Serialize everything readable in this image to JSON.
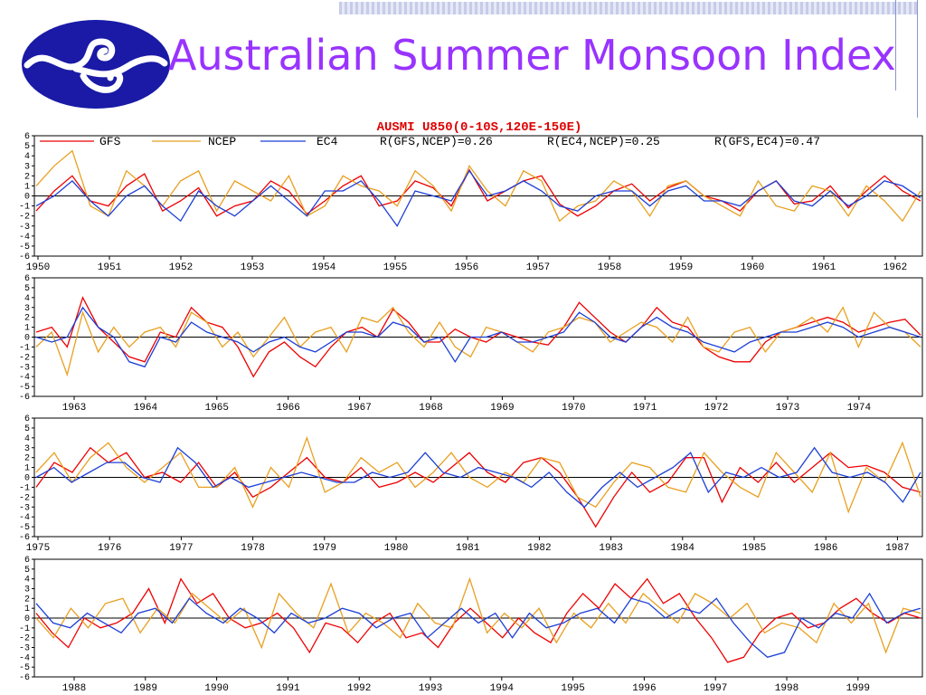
{
  "slide": {
    "title": "Australian Summer Monsoon Index"
  },
  "colors": {
    "title": "#9933ff",
    "logo_bg": "#1a1aa6",
    "gfs": "#ee0000",
    "ncep": "#e8a020",
    "ec4": "#1c3fd6"
  },
  "chart_data": {
    "type": "line",
    "title": "AUSMI U850(0-10S,120E-150E)",
    "legend_placement": "top",
    "correlation_labels": [
      "R(GFS,NCEP)=0.26",
      "R(EC4,NCEP)=0.25",
      "R(GFS,EC4)=0.47"
    ],
    "ylim": [
      -6,
      6
    ],
    "ytick_labels": [
      "6",
      "5",
      "4",
      "3",
      "2",
      "1",
      "0",
      "-1",
      "-2",
      "-3",
      "-4",
      "-5",
      "-6"
    ],
    "series_names": [
      "GFS",
      "NCEP",
      "EC4"
    ],
    "panels": [
      {
        "years": [
          "1950",
          "1951",
          "1952",
          "1953",
          "1954",
          "1955",
          "1956",
          "1957",
          "1958",
          "1959",
          "1960",
          "1961",
          "1962"
        ],
        "series": [
          {
            "name": "GFS",
            "values": [
              -1.5,
              0.5,
              2.0,
              -0.5,
              -1.0,
              1.0,
              2.2,
              -1.5,
              -0.5,
              0.8,
              -2.0,
              -1.0,
              -0.5,
              1.5,
              0.5,
              -1.8,
              -0.5,
              1.0,
              2.0,
              -1.0,
              -0.5,
              1.5,
              0.8,
              -1.0,
              2.6,
              -0.5,
              0.5,
              1.5,
              2.0,
              -0.8,
              -2.0,
              -1.0,
              0.5,
              1.2,
              -0.5,
              0.8,
              1.5,
              0.0,
              -0.5,
              -1.5,
              0.5,
              1.5,
              -0.8,
              -0.5,
              1.0,
              -1.2,
              0.5,
              2.0,
              0.5,
              -0.5
            ]
          },
          {
            "name": "NCEP",
            "values": [
              1.0,
              3.0,
              4.5,
              -1.0,
              -2.0,
              2.5,
              1.0,
              -1.0,
              1.5,
              2.5,
              -1.5,
              1.5,
              0.5,
              -0.5,
              2.0,
              -2.0,
              -1.0,
              2.0,
              1.0,
              0.5,
              -1.0,
              2.5,
              1.0,
              -1.5,
              3.0,
              0.5,
              -1.0,
              2.5,
              1.5,
              -2.5,
              -1.0,
              -0.5,
              1.5,
              0.5,
              -2.0,
              1.0,
              1.5,
              0.0,
              -1.0,
              -2.0,
              1.5,
              -1.0,
              -1.5,
              1.0,
              0.5,
              -2.0,
              1.0,
              -0.5,
              -2.5,
              0.5
            ]
          },
          {
            "name": "EC4",
            "values": [
              -1.0,
              0.0,
              1.5,
              -0.5,
              -2.0,
              0.0,
              1.0,
              -1.0,
              -2.5,
              0.5,
              -1.0,
              -2.0,
              -0.5,
              1.0,
              -0.5,
              -2.0,
              0.5,
              0.5,
              1.5,
              -0.5,
              -3.0,
              0.5,
              0.0,
              -0.5,
              2.5,
              0.0,
              0.5,
              1.5,
              0.5,
              -1.0,
              -1.5,
              0.0,
              0.5,
              0.5,
              -1.0,
              0.5,
              1.0,
              -0.5,
              -0.5,
              -1.0,
              0.5,
              1.5,
              -0.5,
              -1.0,
              0.5,
              -1.0,
              0.0,
              1.5,
              1.0,
              -0.2
            ]
          }
        ]
      },
      {
        "years": [
          "1963",
          "1964",
          "1965",
          "1966",
          "1967",
          "1968",
          "1969",
          "1970",
          "1971",
          "1972",
          "1973",
          "1974"
        ],
        "series": [
          {
            "name": "GFS",
            "values": [
              0.5,
              1.0,
              -1.0,
              4.0,
              1.0,
              -0.5,
              -2.0,
              -2.5,
              0.5,
              0.0,
              3.0,
              1.5,
              1.0,
              -1.0,
              -4.0,
              -1.5,
              -0.5,
              -2.0,
              -3.0,
              -1.0,
              0.5,
              1.0,
              0.0,
              2.8,
              1.5,
              -0.5,
              -0.5,
              0.8,
              0.0,
              -0.5,
              0.5,
              0.0,
              -0.5,
              -0.8,
              1.0,
              3.5,
              2.0,
              0.5,
              -0.5,
              1.0,
              3.0,
              1.5,
              1.0,
              -1.0,
              -2.0,
              -2.5,
              -2.5,
              -0.5,
              0.5,
              1.0,
              1.5,
              2.0,
              1.5,
              0.5,
              1.0,
              1.5,
              1.8,
              0.2
            ]
          },
          {
            "name": "NCEP",
            "values": [
              -1.0,
              0.5,
              -3.8,
              2.5,
              -1.5,
              1.0,
              -1.0,
              0.5,
              1.0,
              -1.0,
              2.5,
              1.5,
              -1.0,
              0.5,
              -2.0,
              0.0,
              2.0,
              -1.0,
              0.5,
              1.0,
              -1.5,
              2.0,
              1.5,
              3.0,
              0.5,
              -1.0,
              1.5,
              -1.0,
              -2.0,
              1.0,
              0.5,
              -0.5,
              -1.5,
              0.5,
              1.0,
              2.0,
              1.5,
              -0.5,
              0.5,
              1.5,
              1.0,
              -0.5,
              2.0,
              -1.0,
              -1.5,
              0.5,
              1.0,
              -1.5,
              0.5,
              1.0,
              2.0,
              0.5,
              3.0,
              -1.0,
              2.5,
              1.0,
              0.5,
              -1.0
            ]
          },
          {
            "name": "EC4",
            "values": [
              0.0,
              -0.5,
              0.0,
              3.0,
              1.0,
              0.0,
              -2.5,
              -3.0,
              0.0,
              -0.5,
              1.5,
              0.5,
              0.0,
              -0.5,
              -1.5,
              -0.5,
              0.0,
              -1.0,
              -1.5,
              -0.5,
              0.5,
              0.5,
              0.0,
              1.5,
              1.0,
              -0.5,
              0.0,
              -2.5,
              0.0,
              0.0,
              0.5,
              -0.5,
              -0.5,
              0.0,
              0.5,
              2.5,
              1.5,
              0.0,
              -0.5,
              1.0,
              2.0,
              1.0,
              0.5,
              -0.5,
              -1.0,
              -1.5,
              -0.5,
              0.0,
              0.5,
              0.5,
              1.0,
              1.5,
              1.0,
              0.0,
              0.5,
              1.0,
              0.5,
              0.0
            ]
          }
        ]
      },
      {
        "years": [
          "1975",
          "1976",
          "1977",
          "1978",
          "1979",
          "1980",
          "1981",
          "1982",
          "1983",
          "1984",
          "1985",
          "1986",
          "1987"
        ],
        "series": [
          {
            "name": "GFS",
            "values": [
              -1.0,
              1.5,
              0.5,
              3.0,
              1.5,
              2.5,
              0.0,
              0.5,
              -0.5,
              1.5,
              -1.0,
              0.5,
              -2.0,
              -1.0,
              0.5,
              2.0,
              0.0,
              -0.5,
              1.0,
              -1.0,
              -0.5,
              0.5,
              -0.5,
              1.0,
              2.5,
              0.5,
              -0.5,
              1.5,
              2.0,
              0.5,
              -2.0,
              -5.0,
              -2.0,
              0.5,
              -1.5,
              -0.5,
              2.0,
              2.0,
              -2.5,
              1.0,
              -0.5,
              1.5,
              -0.5,
              1.0,
              2.5,
              1.0,
              1.2,
              0.5,
              -1.0,
              -1.5
            ]
          },
          {
            "name": "NCEP",
            "values": [
              0.5,
              2.5,
              -0.5,
              2.0,
              3.5,
              1.0,
              -0.5,
              1.0,
              2.5,
              -1.0,
              -1.0,
              1.0,
              -3.0,
              1.0,
              -1.0,
              4.0,
              -1.5,
              -0.5,
              2.0,
              0.5,
              1.5,
              -1.0,
              0.5,
              2.5,
              0.0,
              -1.0,
              0.5,
              -0.5,
              2.0,
              1.5,
              -2.0,
              -3.0,
              -0.5,
              1.5,
              1.0,
              -1.0,
              -1.5,
              2.5,
              0.5,
              -1.0,
              -2.0,
              2.5,
              0.5,
              -1.5,
              2.5,
              -3.5,
              1.0,
              -0.5,
              3.5,
              -2.0
            ]
          },
          {
            "name": "EC4",
            "values": [
              0.0,
              1.0,
              -0.5,
              0.5,
              1.5,
              1.5,
              0.0,
              -0.5,
              3.0,
              1.5,
              -1.0,
              0.0,
              -1.0,
              -0.5,
              0.0,
              0.5,
              0.0,
              -0.5,
              -0.5,
              0.5,
              0.0,
              0.5,
              2.5,
              0.5,
              0.0,
              1.0,
              0.5,
              0.0,
              -1.0,
              0.5,
              -1.5,
              -3.0,
              -1.0,
              0.5,
              -1.0,
              0.0,
              1.0,
              2.5,
              -1.5,
              0.5,
              0.0,
              1.0,
              0.0,
              0.5,
              3.0,
              0.5,
              0.0,
              0.5,
              -0.5,
              -2.5,
              0.5
            ]
          }
        ]
      },
      {
        "years": [
          "1988",
          "1989",
          "1990",
          "1991",
          "1992",
          "1993",
          "1994",
          "1995",
          "1996",
          "1997",
          "1998",
          "1999"
        ],
        "series": [
          {
            "name": "GFS",
            "values": [
              0.5,
              -1.5,
              -3.0,
              0.0,
              -1.0,
              -0.5,
              0.5,
              3.0,
              -0.5,
              4.0,
              1.5,
              2.5,
              0.0,
              -1.0,
              -0.5,
              0.5,
              -1.0,
              -3.5,
              -0.5,
              -1.0,
              -2.5,
              -0.5,
              0.5,
              -2.0,
              -1.5,
              -3.0,
              -0.5,
              1.0,
              -0.5,
              -2.0,
              0.0,
              -1.5,
              -2.5,
              0.5,
              2.5,
              1.0,
              3.5,
              2.0,
              4.0,
              1.5,
              2.5,
              0.0,
              -2.0,
              -4.5,
              -4.0,
              -1.5,
              0.0,
              0.5,
              -1.0,
              -0.5,
              1.0,
              2.0,
              0.5,
              -0.5,
              0.5,
              0.0
            ]
          },
          {
            "name": "NCEP",
            "values": [
              0.0,
              -2.0,
              1.0,
              -1.0,
              1.5,
              2.0,
              -1.5,
              1.0,
              -0.5,
              2.5,
              1.0,
              -0.5,
              1.0,
              -3.0,
              2.5,
              0.5,
              -1.0,
              3.5,
              -1.5,
              0.5,
              -0.5,
              -2.0,
              1.5,
              -0.5,
              -1.0,
              4.0,
              -1.5,
              0.5,
              -1.0,
              1.0,
              -2.5,
              0.5,
              -1.0,
              1.5,
              -0.5,
              2.5,
              1.0,
              -0.5,
              2.5,
              1.5,
              0.0,
              1.5,
              -1.5,
              -0.5,
              -1.0,
              -2.5,
              1.5,
              -0.5,
              1.5,
              -3.5,
              1.0,
              0.5
            ]
          },
          {
            "name": "EC4",
            "values": [
              1.5,
              -0.5,
              -1.0,
              0.5,
              -0.5,
              -1.5,
              0.5,
              1.0,
              -0.5,
              2.0,
              0.5,
              -0.5,
              1.0,
              0.0,
              -1.5,
              0.5,
              -0.5,
              0.0,
              1.0,
              0.5,
              -1.0,
              0.0,
              0.5,
              -2.0,
              -0.5,
              1.0,
              -0.5,
              0.5,
              -2.0,
              0.5,
              -1.0,
              -0.5,
              0.5,
              1.0,
              -0.5,
              2.0,
              1.5,
              0.0,
              1.0,
              0.5,
              2.0,
              -0.5,
              -2.5,
              -4.0,
              -3.5,
              0.0,
              -1.0,
              0.5,
              0.0,
              2.5,
              -0.5,
              0.5,
              1.0
            ]
          }
        ]
      }
    ]
  }
}
